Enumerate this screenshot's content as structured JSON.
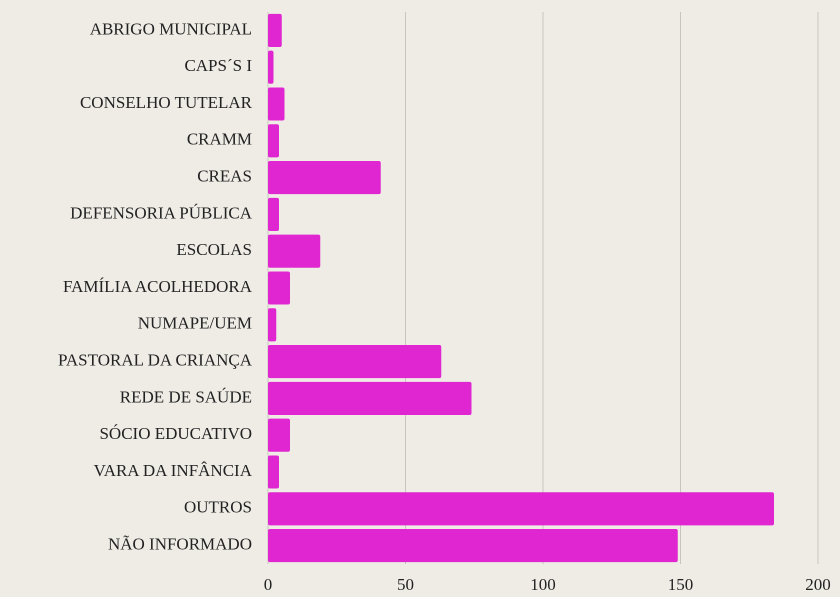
{
  "chart_data": {
    "type": "barh",
    "orientation": "horizontal",
    "categories": [
      "ABRIGO MUNICIPAL",
      "CAPS´S I",
      "CONSELHO TUTELAR",
      "CRAMM",
      "CREAS",
      "DEFENSORIA PÚBLICA",
      "ESCOLAS",
      "FAMÍLIA ACOLHEDORA",
      "NUMAPE/UEM",
      "PASTORAL DA CRIANÇA",
      "REDE DE SAÚDE",
      "SÓCIO EDUCATIVO",
      "VARA DA INFÂNCIA",
      "OUTROS",
      "NÃO INFORMADO"
    ],
    "values": [
      5,
      2,
      6,
      4,
      41,
      4,
      19,
      8,
      3,
      63,
      74,
      8,
      4,
      184,
      149
    ],
    "color": "#e026d0",
    "xlim": [
      0,
      200
    ],
    "xticks": [
      0,
      50,
      100,
      150,
      200
    ],
    "grid": true
  }
}
